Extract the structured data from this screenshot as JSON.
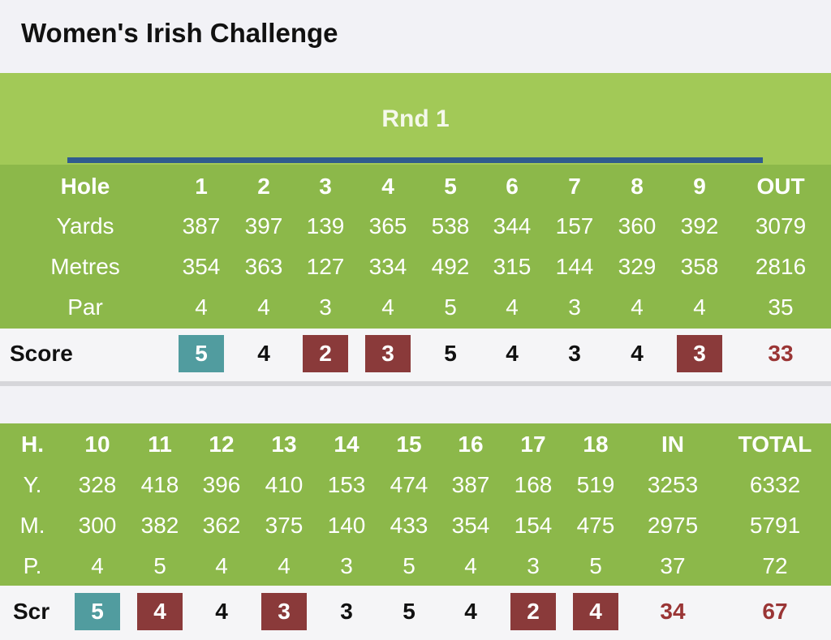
{
  "title": "Women's Irish Challenge",
  "round": "Rnd 1",
  "front": {
    "header": [
      "Hole",
      1,
      2,
      3,
      4,
      5,
      6,
      7,
      8,
      9,
      "OUT"
    ],
    "rows": [
      [
        "Yards",
        387,
        397,
        139,
        365,
        538,
        344,
        157,
        360,
        392,
        3079
      ],
      [
        "Metres",
        354,
        363,
        127,
        334,
        492,
        315,
        144,
        329,
        358,
        2816
      ],
      [
        "Par",
        4,
        4,
        3,
        4,
        5,
        4,
        3,
        4,
        4,
        35
      ]
    ],
    "score": [
      "Score",
      5,
      4,
      2,
      3,
      5,
      4,
      3,
      4,
      3,
      33
    ]
  },
  "back": {
    "header": [
      "H.",
      10,
      11,
      12,
      13,
      14,
      15,
      16,
      17,
      18,
      "IN",
      "TOTAL"
    ],
    "rows": [
      [
        "Y.",
        328,
        418,
        396,
        410,
        153,
        474,
        387,
        168,
        519,
        3253,
        6332
      ],
      [
        "M.",
        300,
        382,
        362,
        375,
        140,
        433,
        354,
        154,
        475,
        2975,
        5791
      ],
      [
        "P.",
        4,
        5,
        4,
        4,
        3,
        5,
        4,
        3,
        5,
        37,
        72
      ]
    ],
    "score": [
      "Scr",
      5,
      4,
      4,
      3,
      3,
      5,
      4,
      2,
      4,
      34,
      67
    ]
  }
}
